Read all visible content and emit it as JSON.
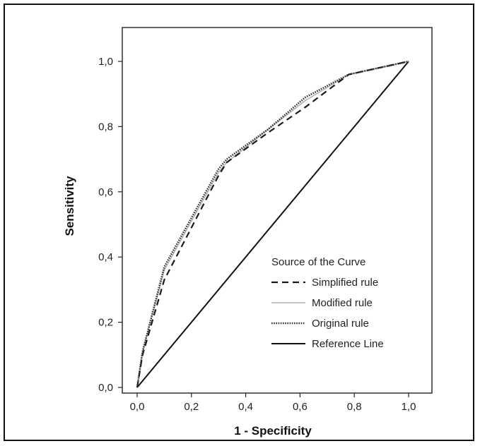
{
  "chart_data": {
    "type": "line",
    "title": "",
    "xlabel": "1 - Specificity",
    "ylabel": "Sensitivity",
    "xlim": [
      0,
      1
    ],
    "ylim": [
      0,
      1
    ],
    "xticks": [
      "0,0",
      "0,2",
      "0,4",
      "0,6",
      "0,8",
      "1,0"
    ],
    "yticks": [
      "0,0",
      "0,2",
      "0,4",
      "0,6",
      "0,8",
      "1,0"
    ],
    "grid": false,
    "legend": {
      "title": "Source of the Curve",
      "placement": "bottom-right"
    },
    "series": [
      {
        "name": "Simplified rule",
        "style": "dashed",
        "color": "#1a1a1a",
        "x": [
          0.0,
          0.02,
          0.1,
          0.3,
          0.33,
          0.48,
          0.62,
          0.78,
          1.0
        ],
        "y": [
          0.0,
          0.1,
          0.33,
          0.65,
          0.69,
          0.78,
          0.86,
          0.96,
          1.0
        ]
      },
      {
        "name": "Modified rule",
        "style": "solid-light",
        "color": "#b0b0b0",
        "x": [
          0.0,
          0.02,
          0.1,
          0.3,
          0.33,
          0.48,
          0.62,
          0.78,
          1.0
        ],
        "y": [
          0.0,
          0.11,
          0.36,
          0.66,
          0.69,
          0.79,
          0.88,
          0.96,
          1.0
        ]
      },
      {
        "name": "Original rule",
        "style": "dotted",
        "color": "#333333",
        "x": [
          0.0,
          0.02,
          0.1,
          0.3,
          0.33,
          0.48,
          0.62,
          0.78,
          1.0
        ],
        "y": [
          0.0,
          0.11,
          0.37,
          0.67,
          0.7,
          0.79,
          0.89,
          0.96,
          1.0
        ]
      },
      {
        "name": "Reference Line",
        "style": "solid",
        "color": "#111111",
        "x": [
          0.0,
          1.0
        ],
        "y": [
          0.0,
          1.0
        ]
      }
    ]
  }
}
